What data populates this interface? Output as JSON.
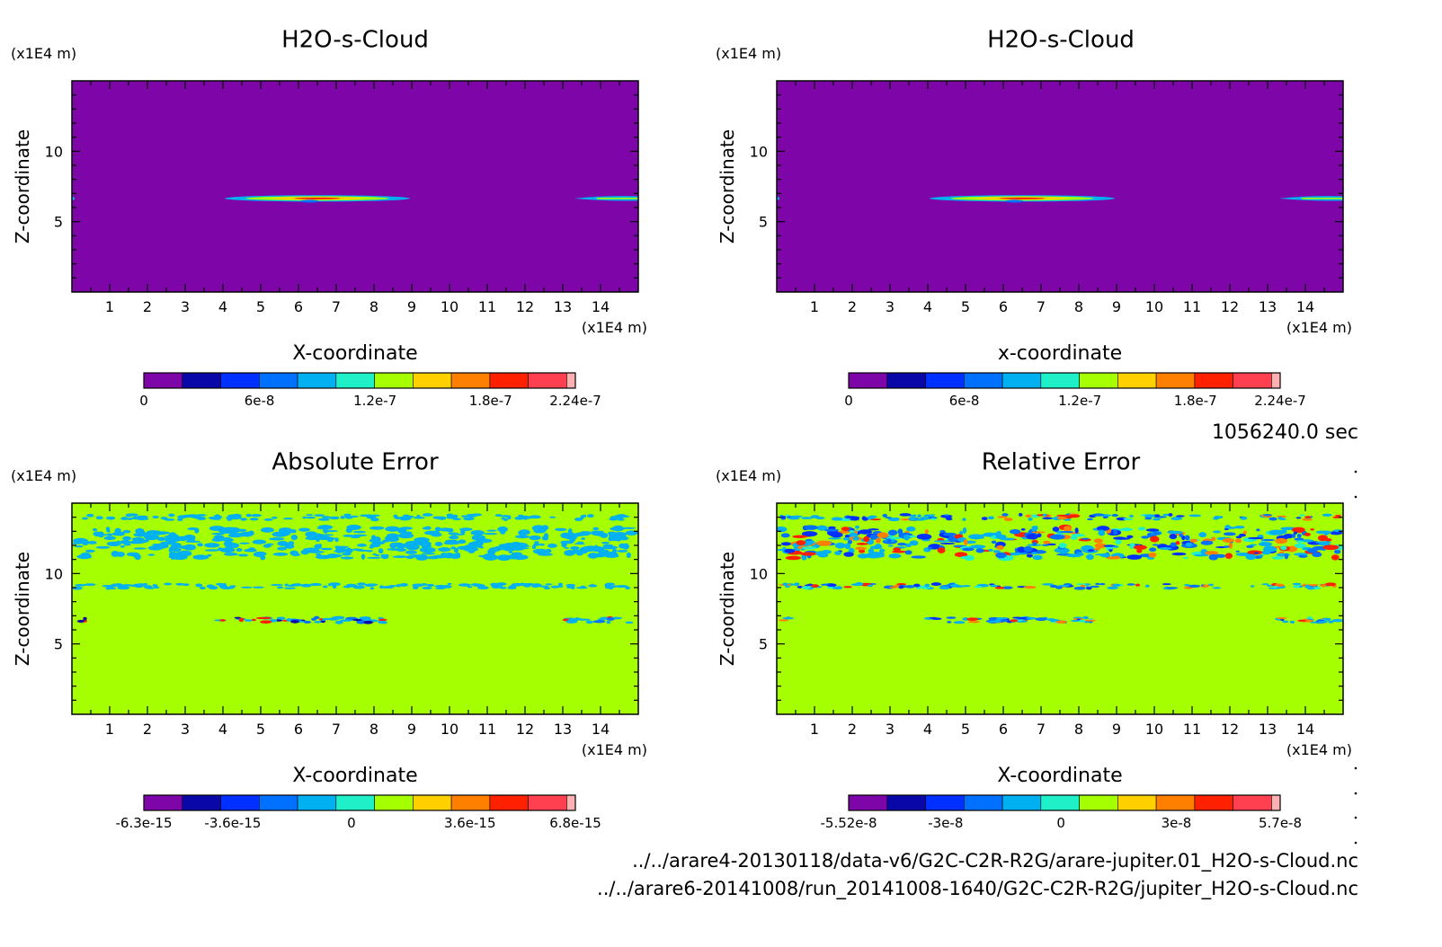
{
  "colors": {
    "cloud_background": "#7e05a8",
    "error_background": "#a6ff00",
    "cloud_levels": [
      "#7e05a8",
      "#0a07a8",
      "#0030ff",
      "#0070ff",
      "#00b0f0",
      "#20f0c8",
      "#a6ff00",
      "#ffd000",
      "#ff8000",
      "#ff2000",
      "#ff4050",
      "#ffb0b0"
    ],
    "abs_levels": [
      "#7e05a8",
      "#0a07a8",
      "#0030ff",
      "#0070ff",
      "#00b0f0",
      "#20f0c8",
      "#a6ff00",
      "#ffd000",
      "#ff8000",
      "#ff2000",
      "#ff4050",
      "#ffb0b0"
    ],
    "rel_levels": [
      "#7e05a8",
      "#0a07a8",
      "#0030ff",
      "#0070ff",
      "#00b0f0",
      "#20f0c8",
      "#a6ff00",
      "#ffd000",
      "#ff8000",
      "#ff2000",
      "#ff4050",
      "#ffb0b0"
    ]
  },
  "time_label": "1056240.0 sec",
  "files": {
    "line1": "../../arare4-20130118/data-v6/G2C-C2R-R2G/arare-jupiter.01_H2O-s-Cloud.nc",
    "line2": "../../arare6-20141008/run_20141008-1640/G2C-C2R-R2G/jupiter_H2O-s-Cloud.nc"
  },
  "chart_data": [
    {
      "type": "heatmap",
      "title": "H2O-s-Cloud",
      "xlabel": "X-coordinate",
      "ylabel": "Z-coordinate",
      "x_unit": "(x1E4 m)",
      "y_unit": "(x1E4 m)",
      "xlim": [
        0,
        15
      ],
      "ylim": [
        0,
        15
      ],
      "x_ticks": [
        "1",
        "2",
        "3",
        "4",
        "5",
        "6",
        "7",
        "8",
        "9",
        "10",
        "11",
        "12",
        "13",
        "14"
      ],
      "y_ticks": [
        "5",
        "10"
      ],
      "field": "cloud",
      "colorbar": {
        "min": 0,
        "max": 2.24e-07,
        "labels": [
          "0",
          "6e-8",
          "1.2e-7",
          "1.8e-7",
          "2.24e-7"
        ],
        "label_values": [
          0,
          6e-08,
          1.2e-07,
          1.8e-07,
          2.24e-07
        ]
      }
    },
    {
      "type": "heatmap",
      "title": "H2O-s-Cloud",
      "xlabel": "x-coordinate",
      "ylabel": "Z-coordinate",
      "x_unit": "(x1E4 m)",
      "y_unit": "(x1E4 m)",
      "xlim": [
        0,
        15
      ],
      "ylim": [
        0,
        15
      ],
      "x_ticks": [
        "1",
        "2",
        "3",
        "4",
        "5",
        "6",
        "7",
        "8",
        "9",
        "10",
        "11",
        "12",
        "13",
        "14"
      ],
      "y_ticks": [
        "5",
        "10"
      ],
      "field": "cloud",
      "colorbar": {
        "min": 0,
        "max": 2.24e-07,
        "labels": [
          "0",
          "6e-8",
          "1.2e-7",
          "1.8e-7",
          "2.24e-7"
        ],
        "label_values": [
          0,
          6e-08,
          1.2e-07,
          1.8e-07,
          2.24e-07
        ]
      }
    },
    {
      "type": "heatmap",
      "title": "Absolute Error",
      "xlabel": "X-coordinate",
      "ylabel": "Z-coordinate",
      "x_unit": "(x1E4 m)",
      "y_unit": "(x1E4 m)",
      "xlim": [
        0,
        15
      ],
      "ylim": [
        0,
        15
      ],
      "x_ticks": [
        "1",
        "2",
        "3",
        "4",
        "5",
        "6",
        "7",
        "8",
        "9",
        "10",
        "11",
        "12",
        "13",
        "14"
      ],
      "y_ticks": [
        "5",
        "10"
      ],
      "field": "abs_error",
      "colorbar": {
        "min": -6.3e-15,
        "max": 6.8e-15,
        "labels": [
          "-6.3e-15",
          "-3.6e-15",
          "0",
          "3.6e-15",
          "6.8e-15"
        ],
        "label_values": [
          -6.3e-15,
          -3.6e-15,
          0,
          3.6e-15,
          6.8e-15
        ]
      }
    },
    {
      "type": "heatmap",
      "title": "Relative Error",
      "xlabel": "X-coordinate",
      "ylabel": "Z-coordinate",
      "x_unit": "(x1E4 m)",
      "y_unit": "(x1E4 m)",
      "xlim": [
        0,
        15
      ],
      "ylim": [
        0,
        15
      ],
      "x_ticks": [
        "1",
        "2",
        "3",
        "4",
        "5",
        "6",
        "7",
        "8",
        "9",
        "10",
        "11",
        "12",
        "13",
        "14"
      ],
      "y_ticks": [
        "5",
        "10"
      ],
      "field": "rel_error",
      "colorbar": {
        "min": -5.52e-08,
        "max": 5.7e-08,
        "labels": [
          "-5.52e-8",
          "-3e-8",
          "0",
          "3e-8",
          "5.7e-8"
        ],
        "label_values": [
          -5.52e-08,
          -3e-08,
          0,
          3e-08,
          5.7e-08
        ]
      }
    }
  ]
}
